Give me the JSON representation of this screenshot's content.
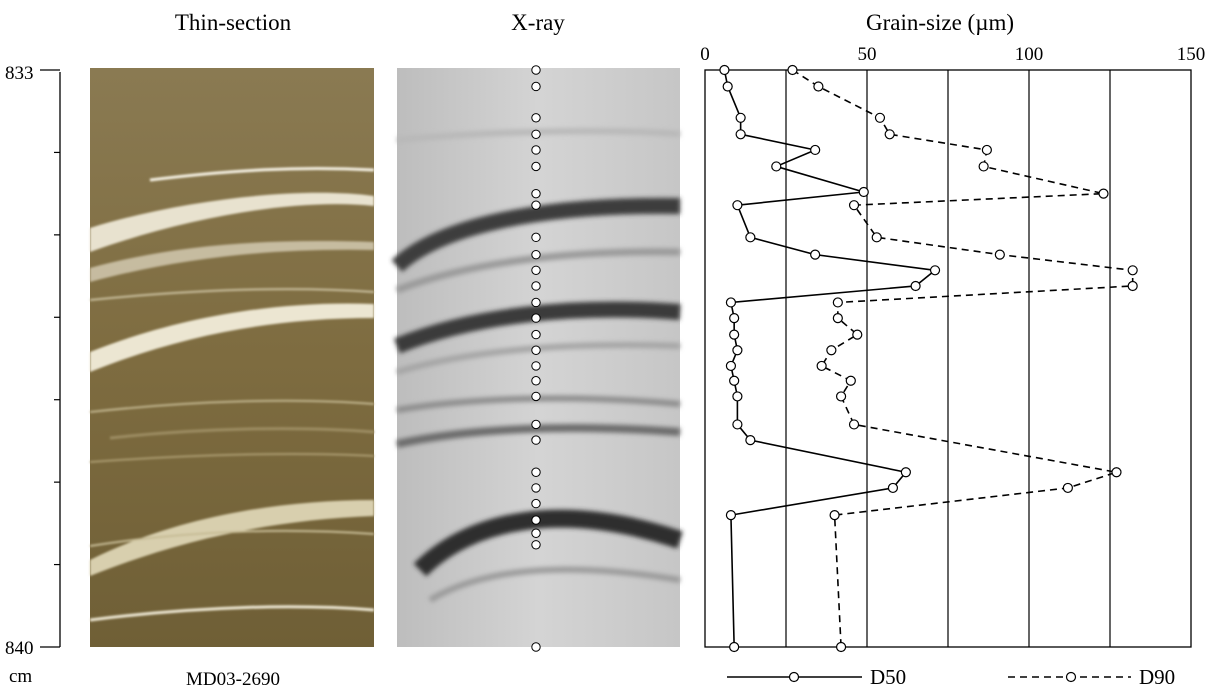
{
  "chart_data": {
    "type": "line",
    "panel_titles": {
      "thin_section": "Thin-section",
      "xray": "X-ray",
      "grain_size": "Grain-size (µm)"
    },
    "core_label": "MD03-2690",
    "depth_axis": {
      "unit_label": "cm",
      "range": [
        833,
        840
      ],
      "tick_labels": [
        "833",
        "840"
      ],
      "minor_ticks": [
        833,
        834,
        835,
        836,
        837,
        838,
        839,
        840
      ]
    },
    "xaxis": {
      "range": [
        0,
        150
      ],
      "ticks": [
        0,
        50,
        100,
        150
      ],
      "tick_labels": [
        "0",
        "50",
        "100",
        "150"
      ],
      "gridlines": [
        25,
        50,
        75,
        100,
        125
      ]
    },
    "sample_depths": [
      833.0,
      833.2,
      833.58,
      833.78,
      833.97,
      834.17,
      834.5,
      834.64,
      835.03,
      835.24,
      835.43,
      835.62,
      835.82,
      836.01,
      836.21,
      836.4,
      836.59,
      836.77,
      836.96,
      837.3,
      837.49,
      837.88,
      838.07,
      838.26,
      838.46,
      838.62,
      838.76,
      840.0
    ],
    "series": [
      {
        "name": "D50",
        "style": "solid",
        "points": [
          {
            "x": 6,
            "y": 833.0
          },
          {
            "x": 7,
            "y": 833.2
          },
          {
            "x": 11,
            "y": 833.58
          },
          {
            "x": 11,
            "y": 833.78
          },
          {
            "x": 34,
            "y": 833.97
          },
          {
            "x": 22,
            "y": 834.17
          },
          {
            "x": 49,
            "y": 834.48
          },
          {
            "x": 10,
            "y": 834.64
          },
          {
            "x": 14,
            "y": 835.03
          },
          {
            "x": 34,
            "y": 835.24
          },
          {
            "x": 71,
            "y": 835.43
          },
          {
            "x": 65,
            "y": 835.62
          },
          {
            "x": 8,
            "y": 835.82
          },
          {
            "x": 9,
            "y": 836.01
          },
          {
            "x": 9,
            "y": 836.21
          },
          {
            "x": 10,
            "y": 836.4
          },
          {
            "x": 8,
            "y": 836.59
          },
          {
            "x": 9,
            "y": 836.77
          },
          {
            "x": 10,
            "y": 836.96
          },
          {
            "x": 10,
            "y": 837.3
          },
          {
            "x": 14,
            "y": 837.49
          },
          {
            "x": 62,
            "y": 837.88
          },
          {
            "x": 58,
            "y": 838.07
          },
          {
            "x": 8,
            "y": 838.4
          },
          {
            "x": 9,
            "y": 840.0
          }
        ]
      },
      {
        "name": "D90",
        "style": "dashed",
        "points": [
          {
            "x": 27,
            "y": 833.0
          },
          {
            "x": 35,
            "y": 833.2
          },
          {
            "x": 54,
            "y": 833.58
          },
          {
            "x": 57,
            "y": 833.78
          },
          {
            "x": 87,
            "y": 833.97
          },
          {
            "x": 86,
            "y": 834.17
          },
          {
            "x": 123,
            "y": 834.5
          },
          {
            "x": 46,
            "y": 834.64
          },
          {
            "x": 53,
            "y": 835.03
          },
          {
            "x": 91,
            "y": 835.24
          },
          {
            "x": 132,
            "y": 835.43
          },
          {
            "x": 132,
            "y": 835.62
          },
          {
            "x": 41,
            "y": 835.82
          },
          {
            "x": 41,
            "y": 836.01
          },
          {
            "x": 47,
            "y": 836.21
          },
          {
            "x": 39,
            "y": 836.4
          },
          {
            "x": 36,
            "y": 836.59
          },
          {
            "x": 45,
            "y": 836.77
          },
          {
            "x": 42,
            "y": 836.96
          },
          {
            "x": 46,
            "y": 837.3
          },
          {
            "x": 127,
            "y": 837.88
          },
          {
            "x": 112,
            "y": 838.07
          },
          {
            "x": 40,
            "y": 838.4
          },
          {
            "x": 42,
            "y": 840.0
          }
        ]
      }
    ],
    "legend": {
      "position": "bottom",
      "items": [
        {
          "label": "D50",
          "style": "solid"
        },
        {
          "label": "D90",
          "style": "dashed"
        }
      ]
    },
    "grid": true
  }
}
